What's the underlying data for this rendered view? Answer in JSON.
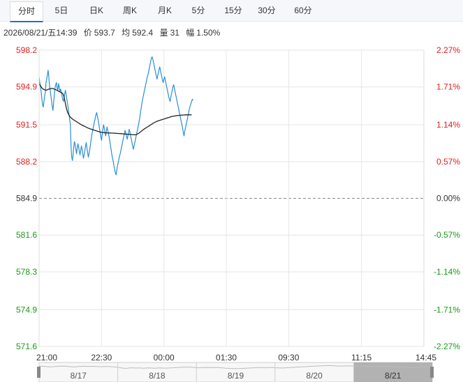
{
  "tabs": [
    {
      "label": "分时",
      "active": true
    },
    {
      "label": "5日",
      "active": false
    },
    {
      "label": "日K",
      "active": false
    },
    {
      "label": "周K",
      "active": false
    },
    {
      "label": "月K",
      "active": false
    },
    {
      "label": "5分",
      "active": false
    },
    {
      "label": "15分",
      "active": false
    },
    {
      "label": "30分",
      "active": false
    },
    {
      "label": "60分",
      "active": false
    }
  ],
  "info": {
    "datetime": "2026/08/21/五14:39",
    "price_label": "价",
    "price": "593.7",
    "avg_label": "均",
    "avg": "592.4",
    "vol_label": "量",
    "vol": "31",
    "change_label": "幅",
    "change": "1.50%"
  },
  "colors": {
    "up": "#e02020",
    "down": "#1a9a1a",
    "flat": "#333333",
    "price_line": "#2a8fd4",
    "avg_line": "#222222",
    "grid": "#e6e6e6"
  },
  "chart_data": {
    "type": "line",
    "prev_close": 584.9,
    "ylim": [
      571.6,
      598.2
    ],
    "y_ticks": [
      {
        "price": "598.2",
        "pct": "2.27%",
        "dir": "up"
      },
      {
        "price": "594.9",
        "pct": "1.71%",
        "dir": "up"
      },
      {
        "price": "591.5",
        "pct": "1.14%",
        "dir": "up"
      },
      {
        "price": "588.2",
        "pct": "0.57%",
        "dir": "up"
      },
      {
        "price": "584.9",
        "pct": "0.00%",
        "dir": "flat"
      },
      {
        "price": "581.6",
        "pct": "-0.57%",
        "dir": "down"
      },
      {
        "price": "578.3",
        "pct": "-1.14%",
        "dir": "down"
      },
      {
        "price": "574.9",
        "pct": "-1.71%",
        "dir": "down"
      },
      {
        "price": "571.6",
        "pct": "-2.27%",
        "dir": "down"
      }
    ],
    "x_ticks": [
      "21:00",
      "22:30",
      "00:00",
      "01:30",
      "09:30",
      "11:15",
      "14:45"
    ],
    "x_tick_index": [
      0,
      90,
      180,
      270,
      360,
      465,
      555
    ],
    "series": [
      {
        "values": [
          595.8,
          595.3,
          594.9,
          594.4,
          593.8,
          593.3,
          593.1,
          593.6,
          594.1,
          594.4,
          595.3,
          595.6,
          596.0,
          596.4,
          595.8,
          595.0,
          594.6,
          594.1,
          593.6,
          593.1,
          592.8,
          593.5,
          594.2,
          594.8,
          595.1,
          595.3,
          594.8,
          594.6,
          595.2,
          594.9,
          594.5,
          594.7,
          594.4,
          594.1,
          593.8,
          593.6,
          593.9,
          594.3,
          594.6,
          594.2,
          593.8,
          593.4,
          593.0,
          592.5,
          592.0,
          591.6,
          589.6,
          588.6,
          588.3,
          588.8,
          589.5,
          590.0,
          589.7,
          589.3,
          588.9,
          589.4,
          589.8,
          589.5,
          589.1,
          588.8,
          589.2,
          589.6,
          589.3,
          588.9,
          588.5,
          588.8,
          589.2,
          589.6,
          589.9,
          589.4,
          589.0,
          588.6,
          588.9,
          589.3,
          589.7,
          590.2,
          590.6,
          590.9,
          591.2,
          591.5,
          591.8,
          592.1,
          592.4,
          592.6,
          592.3,
          592.0,
          591.6,
          591.2,
          590.8,
          590.4,
          590.1,
          590.6,
          591.1,
          591.5,
          591.2,
          590.8,
          590.5,
          590.9,
          591.3,
          591.0,
          590.7,
          590.4,
          590.0,
          589.6,
          589.2,
          588.8,
          588.5,
          588.2,
          587.8,
          587.5,
          587.2,
          587.0,
          587.4,
          587.8,
          588.1,
          588.4,
          588.7,
          588.9,
          589.2,
          589.5,
          589.8,
          590.1,
          590.4,
          590.7,
          591.0,
          590.8,
          590.5,
          590.2,
          590.5,
          590.8,
          591.1,
          590.8,
          590.5,
          590.2,
          589.9,
          589.6,
          589.3,
          589.6,
          589.9,
          590.2,
          590.5,
          590.8,
          591.1,
          591.4,
          591.7,
          592.1,
          592.5,
          592.9,
          593.3,
          593.7,
          594.0,
          594.3,
          594.6,
          594.9,
          595.2,
          595.5,
          595.8,
          596.0,
          596.3,
          596.6,
          596.9,
          597.2,
          597.5,
          597.6,
          597.4,
          597.1,
          596.8,
          596.5,
          596.2,
          595.9,
          595.6,
          595.9,
          596.2,
          596.5,
          596.7,
          596.4,
          596.1,
          595.8,
          595.5,
          595.3,
          595.6,
          595.8,
          595.5,
          595.2,
          594.9,
          594.6,
          594.3,
          594.0,
          593.8,
          593.6,
          594.0,
          594.3,
          594.6,
          594.9,
          595.1,
          594.8,
          594.5,
          594.2,
          593.9,
          593.6,
          593.3,
          593.0,
          592.7,
          592.4,
          592.1,
          591.8,
          591.5,
          591.2,
          590.8,
          590.5,
          590.9,
          591.2,
          591.5,
          591.8,
          592.1,
          592.4,
          592.7,
          593.0,
          593.2,
          593.4,
          593.6,
          593.8,
          593.7
        ],
        "color_key": "price_line"
      },
      {
        "values": [
          595.2,
          595.1,
          595.0,
          594.9,
          594.8,
          594.75,
          594.7,
          594.68,
          594.65,
          594.62,
          594.6,
          594.62,
          594.65,
          594.68,
          594.7,
          594.72,
          594.74,
          594.75,
          594.76,
          594.76,
          594.75,
          594.73,
          594.7,
          594.68,
          594.65,
          594.62,
          594.6,
          594.56,
          594.52,
          594.48,
          594.45,
          594.42,
          594.4,
          594.35,
          594.3,
          594.2,
          594.0,
          593.7,
          593.4,
          593.1,
          592.85,
          592.65,
          592.5,
          592.38,
          592.28,
          592.2,
          592.13,
          592.07,
          592.02,
          591.98,
          591.94,
          591.9,
          591.86,
          591.82,
          591.78,
          591.74,
          591.7,
          591.66,
          591.62,
          591.58,
          591.54,
          591.5,
          591.47,
          591.44,
          591.41,
          591.38,
          591.35,
          591.32,
          591.29,
          591.26,
          591.23,
          591.2,
          591.17,
          591.15,
          591.13,
          591.11,
          591.09,
          591.07,
          591.05,
          591.03,
          591.01,
          590.99,
          590.97,
          590.95,
          590.93,
          590.91,
          590.89,
          590.87,
          590.85,
          590.84,
          590.83,
          590.82,
          590.81,
          590.8,
          590.8,
          590.79,
          590.79,
          590.78,
          590.78,
          590.78,
          590.77,
          590.77,
          590.77,
          590.76,
          590.76,
          590.76,
          590.75,
          590.75,
          590.75,
          590.74,
          590.74,
          590.74,
          590.73,
          590.73,
          590.72,
          590.72,
          590.71,
          590.71,
          590.7,
          590.7,
          590.69,
          590.69,
          590.68,
          590.68,
          590.67,
          590.67,
          590.66,
          590.66,
          590.65,
          590.65,
          590.64,
          590.64,
          590.63,
          590.63,
          590.62,
          590.62,
          590.61,
          590.61,
          590.6,
          590.6,
          590.62,
          590.65,
          590.68,
          590.72,
          590.76,
          590.8,
          590.85,
          590.9,
          590.95,
          591.0,
          591.05,
          591.1,
          591.14,
          591.18,
          591.22,
          591.26,
          591.3,
          591.34,
          591.38,
          591.42,
          591.46,
          591.5,
          591.54,
          591.58,
          591.62,
          591.66,
          591.7,
          591.73,
          591.76,
          591.79,
          591.82,
          591.84,
          591.86,
          591.88,
          591.9,
          591.92,
          591.94,
          591.96,
          591.98,
          592.0,
          592.02,
          592.04,
          592.06,
          592.08,
          592.1,
          592.12,
          592.14,
          592.16,
          592.18,
          592.2,
          592.22,
          592.24,
          592.26,
          592.27,
          592.28,
          592.29,
          592.3,
          592.31,
          592.32,
          592.33,
          592.34,
          592.34,
          592.35,
          592.35,
          592.36,
          592.36,
          592.37,
          592.37,
          592.38,
          592.38,
          592.39,
          592.39,
          592.4,
          592.4,
          592.4,
          592.4,
          592.4,
          592.4,
          592.4,
          592.4,
          592.4
        ],
        "color_key": "avg_line"
      }
    ]
  },
  "navigator": {
    "date_labels": [
      "8/17",
      "8/18",
      "8/19",
      "8/20",
      "8/21"
    ]
  }
}
